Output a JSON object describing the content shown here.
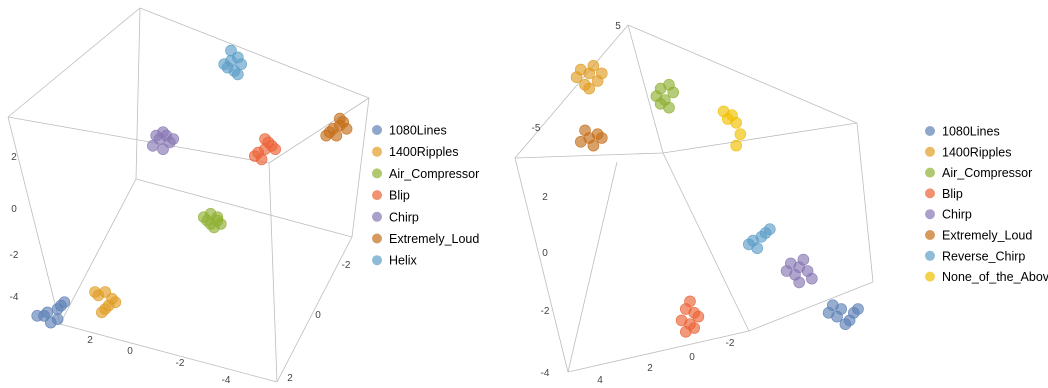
{
  "chart_data": [
    {
      "type": "scatter3d",
      "panel": "left",
      "series": [
        {
          "name": "1080Lines",
          "color": "#5e81b5",
          "points": [
            [
              -3.9,
              -3.6
            ],
            [
              -4.0,
              -3.7
            ],
            [
              -3.6,
              -3.5
            ],
            [
              -3.6,
              -3.8
            ],
            [
              -3.5,
              -3.4
            ],
            [
              -3.4,
              -3.3
            ],
            [
              -4.2,
              -3.7
            ],
            [
              -3.8,
              -3.9
            ]
          ]
        },
        {
          "name": "1400Ripples",
          "color": "#e19c24",
          "points": [
            [
              -2.2,
              -3.0
            ],
            [
              -2.4,
              -3.1
            ],
            [
              -2.0,
              -3.2
            ],
            [
              -2.1,
              -3.4
            ],
            [
              -2.5,
              -3.0
            ],
            [
              -1.9,
              -3.3
            ],
            [
              -2.2,
              -3.5
            ],
            [
              -2.3,
              -3.6
            ]
          ]
        },
        {
          "name": "Air_Compressor",
          "color": "#8fb032",
          "points": [
            [
              0.9,
              -0.7
            ],
            [
              1.1,
              -0.8
            ],
            [
              0.8,
              -0.9
            ],
            [
              1.2,
              -1.0
            ],
            [
              1.0,
              -1.1
            ],
            [
              0.7,
              -0.8
            ],
            [
              0.9,
              -1.0
            ],
            [
              1.1,
              -0.9
            ]
          ]
        },
        {
          "name": "Blip",
          "color": "#eb6235",
          "points": [
            [
              2.5,
              1.2
            ],
            [
              2.7,
              1.3
            ],
            [
              2.3,
              1.1
            ],
            [
              2.6,
              1.4
            ],
            [
              2.4,
              0.9
            ],
            [
              2.8,
              1.2
            ],
            [
              2.2,
              1.0
            ],
            [
              2.5,
              1.5
            ]
          ]
        },
        {
          "name": "Chirp",
          "color": "#8778b3",
          "points": [
            [
              -0.6,
              1.5
            ],
            [
              -0.4,
              1.6
            ],
            [
              -0.8,
              1.3
            ],
            [
              -0.5,
              1.7
            ],
            [
              -0.3,
              1.4
            ],
            [
              -0.7,
              1.6
            ],
            [
              -0.5,
              1.2
            ],
            [
              -0.2,
              1.5
            ]
          ]
        },
        {
          "name": "Extremely_Loud",
          "color": "#c56e1a",
          "points": [
            [
              4.5,
              1.8
            ],
            [
              4.7,
              1.9
            ],
            [
              4.4,
              1.7
            ],
            [
              4.8,
              2.0
            ],
            [
              4.6,
              1.6
            ],
            [
              4.9,
              1.8
            ],
            [
              4.3,
              1.6
            ],
            [
              4.7,
              2.1
            ]
          ]
        },
        {
          "name": "Helix",
          "color": "#5d9ec7",
          "points": [
            [
              1.5,
              3.8
            ],
            [
              1.7,
              3.9
            ],
            [
              1.4,
              3.6
            ],
            [
              1.6,
              3.5
            ],
            [
              1.8,
              3.7
            ],
            [
              1.5,
              4.1
            ],
            [
              1.3,
              3.7
            ],
            [
              1.7,
              3.4
            ]
          ]
        }
      ],
      "axes": {
        "a": {
          "ticks": [
            "2",
            "0",
            "-2",
            "-4"
          ]
        },
        "b": {
          "ticks": [
            "-2",
            "0",
            "2"
          ]
        },
        "vertical": {
          "ticks": [
            "-4",
            "-2",
            "0",
            "2"
          ]
        }
      }
    },
    {
      "type": "scatter3d",
      "panel": "right",
      "series": [
        {
          "name": "1080Lines",
          "color": "#5e81b5",
          "points": [
            [
              3.4,
              -2.9
            ],
            [
              3.6,
              -3.0
            ],
            [
              3.9,
              -3.1
            ],
            [
              3.8,
              -3.3
            ],
            [
              3.5,
              -3.2
            ],
            [
              4.0,
              -3.0
            ],
            [
              3.7,
              -3.4
            ],
            [
              3.3,
              -3.1
            ]
          ]
        },
        {
          "name": "1400Ripples",
          "color": "#e19c24",
          "points": [
            [
              -2.6,
              3.3
            ],
            [
              -2.4,
              3.2
            ],
            [
              -2.2,
              3.0
            ],
            [
              -2.5,
              2.9
            ],
            [
              -2.3,
              3.4
            ],
            [
              -2.7,
              3.1
            ],
            [
              -2.1,
              3.2
            ],
            [
              -2.4,
              2.8
            ]
          ]
        },
        {
          "name": "Air_Compressor",
          "color": "#8fb032",
          "points": [
            [
              -0.7,
              2.8
            ],
            [
              -0.5,
              2.9
            ],
            [
              -0.8,
              2.6
            ],
            [
              -0.6,
              2.5
            ],
            [
              -0.4,
              2.7
            ],
            [
              -0.7,
              2.4
            ],
            [
              -0.5,
              2.3
            ]
          ]
        },
        {
          "name": "Blip",
          "color": "#eb6235",
          "points": [
            [
              -0.1,
              -3.0
            ],
            [
              0.1,
              -3.1
            ],
            [
              -0.2,
              -3.3
            ],
            [
              0.0,
              -3.4
            ],
            [
              0.2,
              -3.2
            ],
            [
              -0.1,
              -3.6
            ],
            [
              0.1,
              -3.5
            ],
            [
              0.0,
              -2.8
            ]
          ]
        },
        {
          "name": "Chirp",
          "color": "#8778b3",
          "points": [
            [
              2.4,
              -1.8
            ],
            [
              2.6,
              -1.9
            ],
            [
              2.8,
              -2.0
            ],
            [
              2.5,
              -2.1
            ],
            [
              2.7,
              -1.7
            ],
            [
              2.9,
              -2.2
            ],
            [
              2.3,
              -2.0
            ],
            [
              2.6,
              -2.3
            ]
          ]
        },
        {
          "name": "Extremely_Loud",
          "color": "#c56e1a",
          "points": [
            [
              -2.4,
              1.5
            ],
            [
              -2.2,
              1.6
            ],
            [
              -2.6,
              1.4
            ],
            [
              -2.3,
              1.3
            ],
            [
              -2.1,
              1.5
            ],
            [
              -2.5,
              1.7
            ]
          ]
        },
        {
          "name": "Reverse_Chirp",
          "color": "#5d9ec7",
          "points": [
            [
              1.5,
              -1.2
            ],
            [
              1.7,
              -1.1
            ],
            [
              1.6,
              -1.4
            ],
            [
              1.8,
              -1.0
            ],
            [
              1.4,
              -1.3
            ],
            [
              1.9,
              -0.9
            ]
          ]
        },
        {
          "name": "None_of_the_Above",
          "color": "#f0c000",
          "points": [
            [
              0.8,
              2.2
            ],
            [
              1.0,
              2.1
            ],
            [
              1.1,
              1.9
            ],
            [
              1.2,
              1.6
            ],
            [
              1.1,
              1.3
            ],
            [
              0.9,
              2.0
            ]
          ]
        }
      ],
      "axes": {
        "a": {
          "ticks": [
            "4",
            "2",
            "0",
            "-2"
          ]
        },
        "vertical": {
          "ticks": [
            "-4",
            "-2",
            "0",
            "2"
          ]
        },
        "b": {
          "ticks": [
            "5",
            "-5"
          ]
        }
      }
    }
  ]
}
